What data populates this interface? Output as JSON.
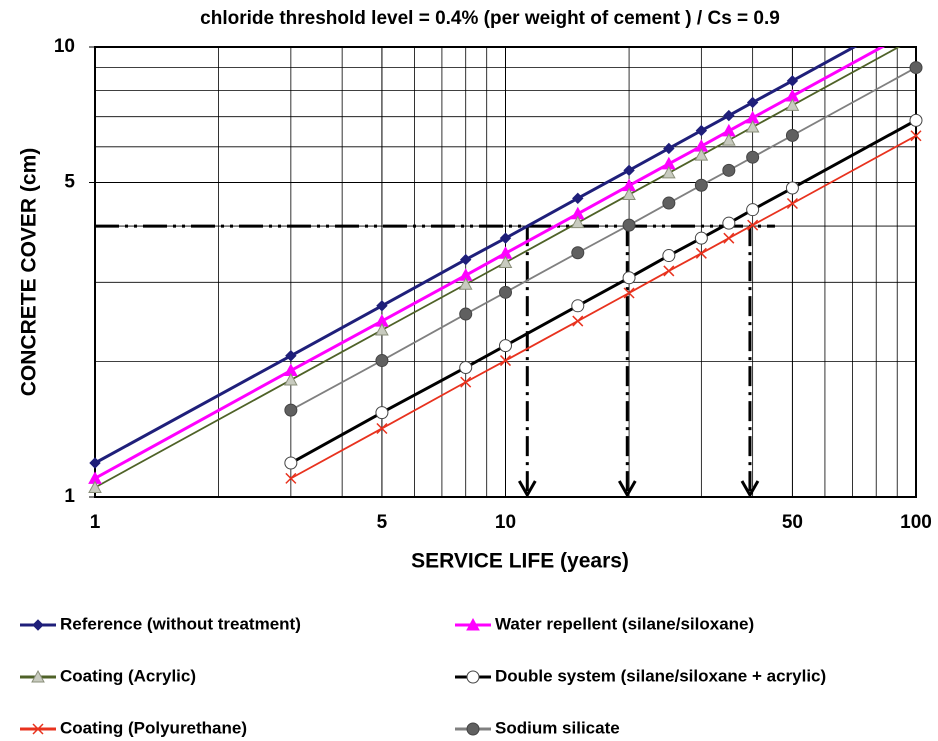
{
  "chart_data": {
    "type": "line",
    "title": "chloride threshold level  = 0.4% (per weight of cement ) / Cs = 0.9",
    "x_label": "SERVICE LIFE (years)",
    "y_label": "CONCRETE COVER (cm)",
    "log_x": true,
    "log_y": true,
    "grid": true,
    "xlim": [
      1,
      100
    ],
    "ylim": [
      1,
      10
    ],
    "xticks": [
      1,
      5,
      10,
      50,
      100
    ],
    "yticks": [
      1,
      5,
      10
    ],
    "x_minor_grid": [
      2,
      3,
      4,
      6,
      7,
      8,
      9,
      20,
      30,
      40,
      60,
      70,
      80,
      90
    ],
    "y_minor_grid": [
      2,
      3,
      4,
      6,
      7,
      8,
      9
    ],
    "x": [
      1,
      3,
      5,
      8,
      10,
      15,
      20,
      25,
      30,
      35,
      40,
      50,
      100
    ],
    "series": [
      {
        "name": "Reference (without treatment)",
        "color": "#1f1f7a",
        "marker": "diamond",
        "marker_color": "#1f1f7a",
        "values": [
          1.19,
          2.06,
          2.66,
          3.37,
          3.76,
          4.61,
          5.32,
          5.95,
          6.52,
          7.04,
          7.53,
          8.41,
          11.9
        ]
      },
      {
        "name": "Water repellent (silane/siloxane)",
        "color": "#ff00ff",
        "marker": "triangle",
        "marker_color": "#ff00ff",
        "values": [
          1.1,
          1.91,
          2.46,
          3.11,
          3.48,
          4.26,
          4.92,
          5.5,
          6.02,
          6.51,
          6.96,
          7.78,
          11.0
        ]
      },
      {
        "name": "Coating (Acrylic)",
        "color": "#4f6228",
        "marker": "triangle",
        "marker_color": "#c8cbbf",
        "values": [
          1.05,
          1.82,
          2.35,
          2.97,
          3.32,
          4.07,
          4.7,
          5.25,
          5.75,
          6.21,
          6.64,
          7.42,
          10.5
        ]
      },
      {
        "name": "Double system (silane/siloxane + acrylic)",
        "color": "#000000",
        "marker": "circle",
        "marker_color": "#ffffff",
        "values": [
          null,
          1.19,
          1.54,
          1.94,
          2.17,
          2.66,
          3.07,
          3.44,
          3.76,
          4.06,
          4.35,
          4.86,
          6.87
        ]
      },
      {
        "name": "Coating (Polyurethane)",
        "color": "#e8321e",
        "marker": "x",
        "marker_color": "#e8321e",
        "values": [
          null,
          1.1,
          1.42,
          1.8,
          2.01,
          2.46,
          2.84,
          3.18,
          3.48,
          3.76,
          4.02,
          4.49,
          6.35
        ]
      },
      {
        "name": "Sodium silicate",
        "color": "#808080",
        "marker": "circle",
        "marker_color": "#606060",
        "values": [
          null,
          1.56,
          2.01,
          2.55,
          2.85,
          3.49,
          4.02,
          4.5,
          4.93,
          5.32,
          5.69,
          6.36,
          9.0
        ]
      }
    ],
    "threshold_cover": 4.0,
    "arrows_x": [
      11.3,
      19.8,
      39.4
    ]
  }
}
